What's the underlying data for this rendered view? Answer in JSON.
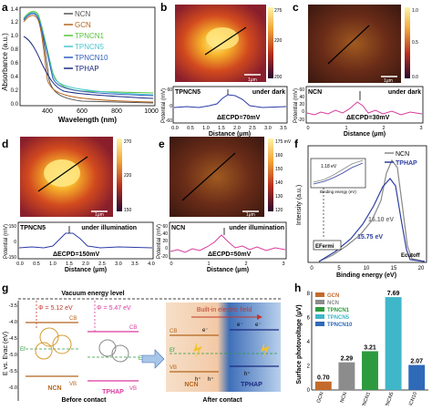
{
  "panel_letters": [
    "a",
    "b",
    "c",
    "d",
    "e",
    "f",
    "g",
    "h"
  ],
  "a": {
    "ylabel": "Absorbance (a.u.)",
    "xlabel": "Wavelength (nm)",
    "xticks": [
      "400",
      "600",
      "800",
      "1000"
    ],
    "yticks": [
      "0.0",
      "0.2",
      "0.4",
      "0.6",
      "0.8",
      "1.0",
      "1.2",
      "1.4"
    ],
    "legend": [
      {
        "name": "NCN",
        "color": "#555555"
      },
      {
        "name": "GCN",
        "color": "#b5651d"
      },
      {
        "name": "TPNCN1",
        "color": "#58c43a"
      },
      {
        "name": "TPNCN5",
        "color": "#4cc6cf"
      },
      {
        "name": "TPNCN10",
        "color": "#2f5fbf"
      },
      {
        "name": "TPHAP",
        "color": "#1b2a80"
      }
    ]
  },
  "b": {
    "tag": "TPNCN5",
    "condition": "under dark",
    "delta": "ΔECPD=70mV",
    "ylabel": "Potential (mV)",
    "xlabel": "Distance (μm)",
    "xticks": [
      "0.0",
      "0.5",
      "1.0",
      "1.5",
      "2.0",
      "2.5",
      "3.0",
      "3.5"
    ],
    "yticks": [
      "-60",
      "0",
      "60"
    ],
    "colorbar": [
      "275",
      "220",
      "200"
    ],
    "scale": "1μm"
  },
  "c": {
    "tag": "NCN",
    "condition": "under dark",
    "delta": "ΔECPD=30mV",
    "ylabel": "Potential (mV)",
    "xlabel": "Distance (μm)",
    "xticks": [
      "0",
      "1",
      "2",
      "3"
    ],
    "yticks": [
      "-20",
      "0",
      "20",
      "40",
      "60"
    ],
    "colorbar": [
      "1.0",
      "0.5",
      "0.0"
    ],
    "scale": "1μm"
  },
  "d": {
    "tag": "TPNCN5",
    "condition": "under illumination",
    "delta": "ΔECPD=150mV",
    "ylabel": "Potential (mV)",
    "xlabel": "Distance (μm)",
    "xticks": [
      "0.0",
      "0.5",
      "1.0",
      "1.5",
      "2.0",
      "2.5",
      "3.0",
      "3.5",
      "4.0"
    ],
    "yticks": [
      "-150",
      "0",
      "150"
    ],
    "colorbar": [
      "270",
      "220",
      "150"
    ],
    "scale": "1μm"
  },
  "e": {
    "tag": "NCN",
    "condition": "under illumination",
    "delta": "ΔECPD=50mV",
    "ylabel": "Potential (mV)",
    "xlabel": "Distance (μm)",
    "xticks": [
      "0",
      "1",
      "2",
      "3"
    ],
    "yticks": [
      "-20",
      "0",
      "20",
      "40",
      "60"
    ],
    "colorbar": [
      "175 mV",
      "160",
      "150",
      "140",
      "130",
      "120"
    ],
    "scale": "1μm"
  },
  "f": {
    "ylabel": "Intensity (a.u.)",
    "xlabel": "Binding energy (eV)",
    "xticks": [
      "0",
      "5",
      "10",
      "15",
      "20"
    ],
    "legend": [
      {
        "name": "NCN",
        "color": "#888888"
      },
      {
        "name": "TPHAP",
        "color": "#2f3f9f"
      }
    ],
    "annot_ncn": "16.10 eV",
    "annot_tphap": "15.75 eV",
    "efermi": "EFermi",
    "ecutoff": "Ecutoff",
    "inset_value": "1.18 eV",
    "inset_xlabel": "Binding energy (eV)"
  },
  "g": {
    "vacuum": "Vacuum energy level",
    "ylabel": "E vs. Evac (eV)",
    "yticks": [
      "-3.5",
      "-4.0",
      "-4.5",
      "-5.0",
      "-5.5",
      "-6.0"
    ],
    "phi_ncn": "Φ = 5.12 eV",
    "phi_tphap": "Φ = 5.47 eV",
    "cb": "CB",
    "vb": "VB",
    "ef": "Ef",
    "label_ncn": "NCN",
    "label_tphap": "TPHAP",
    "before": "Before contact",
    "after": "After contact",
    "field": "Built-in electric field",
    "e_minus": "e⁻",
    "h_plus": "h⁺"
  },
  "chart_data": {
    "type": "bar",
    "title": "",
    "ylabel": "Surface photovoltage (μV)",
    "categories": [
      "GCN",
      "NCN",
      "TPNCN1",
      "TPNCN5",
      "TPNCN10"
    ],
    "values": [
      0.7,
      2.29,
      3.21,
      7.69,
      2.07
    ],
    "value_labels": [
      "0.70",
      "2.29",
      "3.21",
      "7.69",
      "2.07"
    ],
    "colors": [
      "#c46a2a",
      "#8c8c8c",
      "#2e9a3e",
      "#3fb7c9",
      "#2f6ab8"
    ],
    "ylim": [
      0,
      8
    ],
    "yticks": [
      "0",
      "2",
      "4",
      "6",
      "8"
    ],
    "legend": "top-left"
  }
}
